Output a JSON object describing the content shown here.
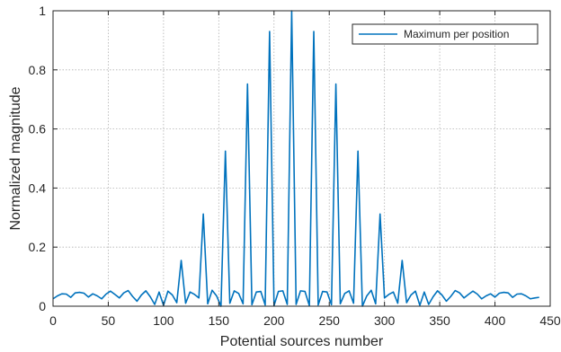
{
  "chart_data": {
    "type": "line",
    "xlabel": "Potential sources number",
    "ylabel": "Normalized magnitude",
    "xlim": [
      0,
      450
    ],
    "ylim": [
      0,
      1
    ],
    "xticks": [
      0,
      50,
      100,
      150,
      200,
      250,
      300,
      350,
      400,
      450
    ],
    "yticks": [
      0,
      0.2,
      0.4,
      0.6,
      0.8,
      1
    ],
    "ytick_labels": [
      "0",
      "0.2",
      "0.4",
      "0.6",
      "0.8",
      "1"
    ],
    "grid": true,
    "legend_position": "top-right",
    "series": [
      {
        "name": "Maximum per position",
        "color": "#0072BD",
        "x": [
          0,
          4,
          8,
          12,
          16,
          20,
          24,
          28,
          32,
          36,
          40,
          44,
          48,
          52,
          56,
          60,
          64,
          68,
          72,
          76,
          80,
          84,
          88,
          92,
          96,
          100,
          104,
          108,
          112,
          116,
          120,
          124,
          128,
          132,
          136,
          140,
          144,
          148,
          152,
          156,
          160,
          164,
          168,
          172,
          176,
          180,
          184,
          188,
          192,
          196,
          200,
          204,
          208,
          212,
          216,
          220,
          224,
          228,
          232,
          236,
          240,
          244,
          248,
          252,
          256,
          260,
          264,
          268,
          272,
          276,
          280,
          284,
          288,
          292,
          296,
          300,
          304,
          308,
          312,
          316,
          320,
          324,
          328,
          332,
          336,
          340,
          344,
          348,
          352,
          356,
          360,
          364,
          368,
          372,
          376,
          380,
          384,
          388,
          392,
          396,
          400,
          404,
          408,
          412,
          416,
          420,
          424,
          428,
          432,
          436,
          440
        ],
        "y": [
          0.025,
          0.035,
          0.042,
          0.041,
          0.03,
          0.045,
          0.047,
          0.044,
          0.031,
          0.042,
          0.035,
          0.025,
          0.041,
          0.051,
          0.04,
          0.028,
          0.045,
          0.053,
          0.033,
          0.017,
          0.038,
          0.052,
          0.032,
          0.006,
          0.048,
          0.003,
          0.051,
          0.038,
          0.012,
          0.155,
          0.01,
          0.048,
          0.04,
          0.028,
          0.312,
          0.008,
          0.054,
          0.035,
          0.0,
          0.525,
          0.01,
          0.052,
          0.043,
          0.008,
          0.752,
          0.005,
          0.048,
          0.05,
          0.004,
          0.93,
          0.002,
          0.05,
          0.052,
          0.006,
          1.0,
          0.006,
          0.052,
          0.05,
          0.002,
          0.93,
          0.004,
          0.05,
          0.048,
          0.005,
          0.752,
          0.008,
          0.043,
          0.052,
          0.01,
          0.525,
          0.0,
          0.035,
          0.054,
          0.008,
          0.312,
          0.028,
          0.04,
          0.048,
          0.01,
          0.155,
          0.012,
          0.038,
          0.051,
          0.003,
          0.048,
          0.006,
          0.032,
          0.052,
          0.038,
          0.017,
          0.033,
          0.053,
          0.045,
          0.028,
          0.04,
          0.051,
          0.041,
          0.025,
          0.035,
          0.042,
          0.031,
          0.044,
          0.047,
          0.045,
          0.03,
          0.041,
          0.042,
          0.035,
          0.025,
          0.028,
          0.03
        ]
      }
    ]
  }
}
